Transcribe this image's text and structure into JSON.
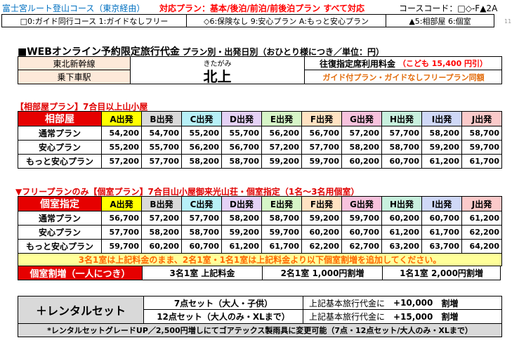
{
  "header": {
    "course_title": "富士宮ルート登山コース（東京経由）",
    "plans_label": "対応プラン：基本/後泊/前泊/前後泊プラン すべて対応",
    "course_code": "コースコード：□◇-F▲2A",
    "page_num": "11",
    "legend_square": "□0:ガイド同行コース 1:ガイドなしフリー",
    "legend_diamond": "◇6:保険なし 9:安心プラン A:もっと安心プラン",
    "legend_triangle": "▲5:相部屋 6:個室"
  },
  "fare": {
    "title": "■WEBオンライン予約限定旅行代金",
    "title_sub": "プラン別・出発日別（おひとり様につき／単位：円）",
    "line": "東北新幹線",
    "station_label": "乗下車駅",
    "station_furigana": "きたがみ",
    "station_name": "北上",
    "fixed_fare_label": "往復指定席利用料金",
    "child_fare": "（こども 15,400 円引）",
    "guide_note": "ガイド付プラン・ガイドなしフリープラン同額"
  },
  "section1": {
    "title": "【相部屋プラン】7合目以上山小屋",
    "corner": "相部屋",
    "departures": [
      "A出発",
      "B出発",
      "C出発",
      "D出発",
      "E出発",
      "F出発",
      "G出発",
      "H出発",
      "I出発",
      "J出発"
    ],
    "rows": [
      {
        "name": "通常プラン",
        "values": [
          "54,200",
          "54,700",
          "55,200",
          "55,700",
          "56,200",
          "56,700",
          "57,200",
          "57,700",
          "58,200",
          "58,700"
        ]
      },
      {
        "name": "安心プラン",
        "values": [
          "55,200",
          "55,700",
          "56,200",
          "56,700",
          "57,200",
          "57,700",
          "58,200",
          "58,700",
          "59,200",
          "59,700"
        ]
      },
      {
        "name": "もっと安心プラン",
        "values": [
          "57,200",
          "57,700",
          "58,200",
          "58,700",
          "59,200",
          "59,700",
          "60,200",
          "60,700",
          "61,200",
          "61,700"
        ]
      }
    ]
  },
  "section2": {
    "title": "▼フリープランのみ【個室プラン】7合目山小屋御来光山荘・個室指定（1名～3名用個室）",
    "corner": "個室指定",
    "departures": [
      "A出発",
      "B出発",
      "C出発",
      "D出発",
      "E出発",
      "F出発",
      "G出発",
      "H出発",
      "I出発",
      "J出発"
    ],
    "rows": [
      {
        "name": "通常プラン",
        "values": [
          "56,700",
          "57,200",
          "57,700",
          "58,200",
          "58,700",
          "59,200",
          "59,700",
          "60,200",
          "60,700",
          "61,200"
        ]
      },
      {
        "name": "安心プラン",
        "values": [
          "57,700",
          "58,200",
          "58,700",
          "59,200",
          "59,700",
          "60,200",
          "60,700",
          "61,200",
          "61,700",
          "62,200"
        ]
      },
      {
        "name": "もっと安心プラン",
        "values": [
          "59,700",
          "60,200",
          "60,700",
          "61,200",
          "61,700",
          "62,200",
          "62,700",
          "63,200",
          "63,700",
          "64,200"
        ]
      }
    ],
    "note": "3名1室は上記料金のまま、2名1室・1名1室は上記料金より以下個室割増を追加してください。",
    "surcharge_label": "個室割増（一人につき）",
    "surcharges": [
      "3名1室 上記料金",
      "2名1室 1,000円割増",
      "1名1室 2,000円割増"
    ]
  },
  "rental": {
    "label": "＋レンタルセット",
    "items": [
      {
        "name": "7点セット（大人・子供）",
        "desc": "上記基本旅行代金に",
        "amount": "+10,000",
        "suffix": "割増"
      },
      {
        "name": "12点セット（大人のみ・XLまで）",
        "desc": "上記基本旅行代金に",
        "amount": "+15,000",
        "suffix": "割増"
      }
    ],
    "footnote": "*レンタルセットグレードUP／2,500円増しにてゴアテックス製雨具に変更可能（7点・12点セット/大人のみ・XLまで）"
  },
  "colors": {
    "title_blue": "#0070c0",
    "plan_red": "#ff0000",
    "section_red": "#e00000",
    "fare_bg": "#fde9d9",
    "corner_red": "#e60000",
    "note_orange": "#ff6600",
    "note_bg": "#ffff99",
    "rental_bg": "#d9d9d9",
    "dep_colors": [
      "#ffff00",
      "#d9d9d9",
      "#b7f0f7",
      "#e4d1f5",
      "#d6f5c7",
      "#ffe2c2",
      "#f7c2dd",
      "#c8f0de",
      "#cfd8f7",
      "#fbcaca"
    ]
  }
}
